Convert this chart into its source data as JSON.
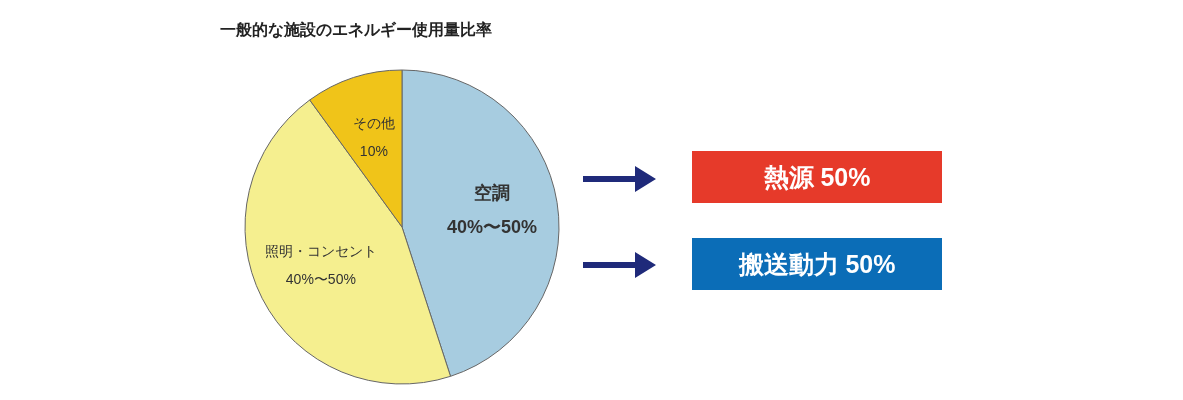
{
  "chart_data": {
    "type": "pie",
    "title": "一般的な施設のエネルギー使用量比率",
    "categories": [
      "空調",
      "照明・コンセント",
      "その他"
    ],
    "values": [
      45,
      45,
      10
    ],
    "value_labels": [
      null,
      null,
      "10%"
    ],
    "colors": [
      "#a7cce0",
      "#f5ef8f",
      "#f0c419"
    ],
    "annotations": [
      {
        "text": "40%〜50%",
        "x": "空調"
      },
      {
        "text": "40%〜50%",
        "x": "照明・コンセント"
      },
      "熱源 50%",
      "搬送動力 50%"
    ]
  }
}
